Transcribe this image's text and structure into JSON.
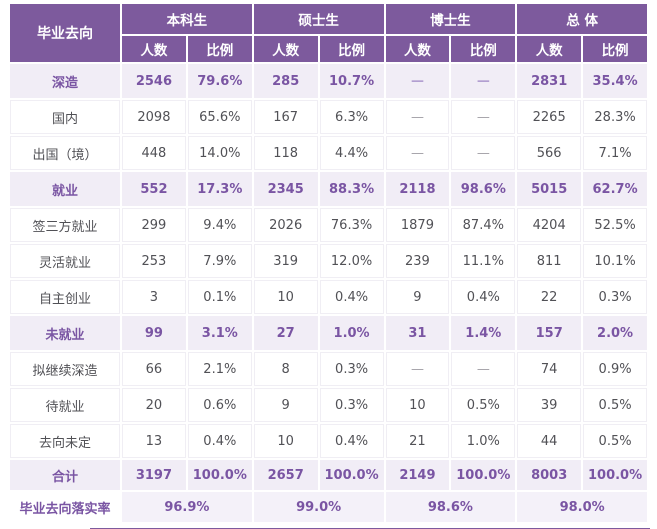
{
  "chart_data": {
    "type": "table",
    "corner_header": "毕业去向",
    "column_groups": [
      "本科生",
      "硕士生",
      "博士生",
      "总  体"
    ],
    "sub_columns": [
      "人数",
      "比例"
    ],
    "rows": [
      {
        "label": "深造",
        "emphasis": true,
        "values": [
          "2546",
          "79.6%",
          "285",
          "10.7%",
          "—",
          "—",
          "2831",
          "35.4%"
        ]
      },
      {
        "label": "国内",
        "emphasis": false,
        "values": [
          "2098",
          "65.6%",
          "167",
          "6.3%",
          "—",
          "—",
          "2265",
          "28.3%"
        ]
      },
      {
        "label": "出国（境）",
        "emphasis": false,
        "values": [
          "448",
          "14.0%",
          "118",
          "4.4%",
          "—",
          "—",
          "566",
          "7.1%"
        ]
      },
      {
        "label": "就业",
        "emphasis": true,
        "values": [
          "552",
          "17.3%",
          "2345",
          "88.3%",
          "2118",
          "98.6%",
          "5015",
          "62.7%"
        ]
      },
      {
        "label": "签三方就业",
        "emphasis": false,
        "values": [
          "299",
          "9.4%",
          "2026",
          "76.3%",
          "1879",
          "87.4%",
          "4204",
          "52.5%"
        ]
      },
      {
        "label": "灵活就业",
        "emphasis": false,
        "values": [
          "253",
          "7.9%",
          "319",
          "12.0%",
          "239",
          "11.1%",
          "811",
          "10.1%"
        ]
      },
      {
        "label": "自主创业",
        "emphasis": false,
        "values": [
          "3",
          "0.1%",
          "10",
          "0.4%",
          "9",
          "0.4%",
          "22",
          "0.3%"
        ]
      },
      {
        "label": "未就业",
        "emphasis": true,
        "values": [
          "99",
          "3.1%",
          "27",
          "1.0%",
          "31",
          "1.4%",
          "157",
          "2.0%"
        ]
      },
      {
        "label": "拟继续深造",
        "emphasis": false,
        "values": [
          "66",
          "2.1%",
          "8",
          "0.3%",
          "—",
          "—",
          "74",
          "0.9%"
        ]
      },
      {
        "label": "待就业",
        "emphasis": false,
        "values": [
          "20",
          "0.6%",
          "9",
          "0.3%",
          "10",
          "0.5%",
          "39",
          "0.5%"
        ]
      },
      {
        "label": "去向未定",
        "emphasis": false,
        "values": [
          "13",
          "0.4%",
          "10",
          "0.4%",
          "21",
          "1.0%",
          "44",
          "0.5%"
        ]
      }
    ],
    "total_row": {
      "label": "合计",
      "values": [
        "3197",
        "100.0%",
        "2657",
        "100.0%",
        "2149",
        "100.0%",
        "8003",
        "100.0%"
      ]
    },
    "rate_row": {
      "label": "毕业去向落实率",
      "values": [
        "96.9%",
        "99.0%",
        "98.6%",
        "98.0%"
      ]
    }
  },
  "colors": {
    "header_bg": "#7d5a9d",
    "highlight_bg": "#f1edf6",
    "highlight_text": "#7a55a3",
    "rate_bg": "#f4f1f9",
    "body_text": "#515156"
  }
}
